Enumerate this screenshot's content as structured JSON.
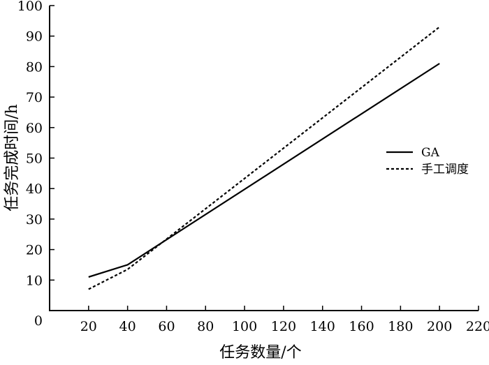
{
  "chart_data": {
    "type": "line",
    "title": "",
    "xlabel": "任务数量/个",
    "ylabel": "任务完成时间/h",
    "xlim": [
      0,
      220
    ],
    "ylim": [
      0,
      100
    ],
    "x_ticks": [
      "20",
      "40",
      "60",
      "80",
      "100",
      "120",
      "140",
      "160",
      "180",
      "200",
      "220"
    ],
    "y_ticks": [
      "0",
      "10",
      "20",
      "30",
      "40",
      "50",
      "60",
      "70",
      "80",
      "90",
      "100"
    ],
    "grid": false,
    "legend_position": "right",
    "series": [
      {
        "name": "GA",
        "line_style": "solid",
        "color": "#000000",
        "x": [
          20,
          40,
          200
        ],
        "y": [
          11,
          15,
          81
        ]
      },
      {
        "name": "手工调度",
        "line_style": "dotted",
        "color": "#000000",
        "x": [
          20,
          40,
          200
        ],
        "y": [
          7,
          13.5,
          93
        ]
      }
    ]
  }
}
